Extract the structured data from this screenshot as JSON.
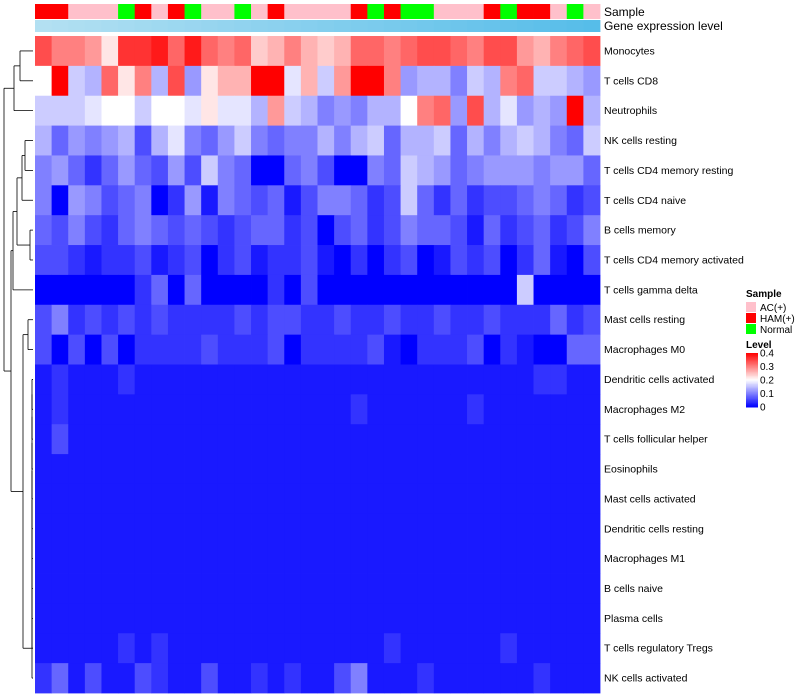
{
  "chart_data": {
    "type": "heatmap",
    "title": "",
    "annotation_labels": {
      "sample": "Sample",
      "gene": "Gene expression level"
    },
    "colors": {
      "low": "#0000ff",
      "mid": "#ffffff",
      "high": "#ff0000",
      "AC(+)": "#ffc0cb",
      "HAM(+)": "#ff0000",
      "Normal": "#00ff00",
      "gene_start": "#b3e0f2",
      "gene_end": "#56bde9",
      "dendrogram": "#000000"
    },
    "rows": [
      "Monocytes",
      "T cells CD8",
      "Neutrophils",
      "NK cells resting",
      "T cells CD4 memory resting",
      "T cells CD4 naive",
      "B cells memory",
      "T cells CD4 memory activated",
      "T cells gamma delta",
      "Mast cells resting",
      "Macrophages M0",
      "Dendritic cells activated",
      "Macrophages M2",
      "T cells follicular helper",
      "Eosinophils",
      "Mast cells activated",
      "Dendritic cells resting",
      "Macrophages M1",
      "B cells naive",
      "Plasma cells",
      "T cells regulatory  Tregs",
      "NK cells activated"
    ],
    "samples": [
      "HAM(+)",
      "HAM(+)",
      "AC(+)",
      "AC(+)",
      "AC(+)",
      "Normal",
      "HAM(+)",
      "AC(+)",
      "HAM(+)",
      "Normal",
      "AC(+)",
      "AC(+)",
      "Normal",
      "AC(+)",
      "HAM(+)",
      "AC(+)",
      "AC(+)",
      "AC(+)",
      "AC(+)",
      "HAM(+)",
      "Normal",
      "HAM(+)",
      "Normal",
      "Normal",
      "AC(+)",
      "AC(+)",
      "AC(+)",
      "HAM(+)",
      "Normal",
      "HAM(+)",
      "HAM(+)",
      "AC(+)",
      "Normal",
      "AC(+)"
    ],
    "values": [
      [
        0.34,
        0.3,
        0.3,
        0.28,
        0.22,
        0.36,
        0.36,
        0.38,
        0.32,
        0.38,
        0.32,
        0.3,
        0.32,
        0.24,
        0.26,
        0.3,
        0.26,
        0.24,
        0.26,
        0.32,
        0.32,
        0.3,
        0.32,
        0.34,
        0.34,
        0.32,
        0.3,
        0.34,
        0.34,
        0.28,
        0.26,
        0.3,
        0.32,
        0.34
      ],
      [
        0.2,
        0.4,
        0.16,
        0.14,
        0.32,
        0.22,
        0.3,
        0.14,
        0.34,
        0.12,
        0.22,
        0.26,
        0.26,
        0.4,
        0.4,
        0.18,
        0.26,
        0.16,
        0.28,
        0.4,
        0.4,
        0.3,
        0.12,
        0.14,
        0.14,
        0.1,
        0.16,
        0.14,
        0.3,
        0.32,
        0.16,
        0.16,
        0.14,
        0.12
      ],
      [
        0.16,
        0.16,
        0.16,
        0.18,
        0.2,
        0.2,
        0.16,
        0.2,
        0.2,
        0.18,
        0.22,
        0.18,
        0.18,
        0.14,
        0.28,
        0.16,
        0.14,
        0.1,
        0.12,
        0.1,
        0.14,
        0.14,
        0.2,
        0.3,
        0.32,
        0.12,
        0.34,
        0.14,
        0.18,
        0.12,
        0.14,
        0.12,
        0.4,
        0.14
      ],
      [
        0.14,
        0.08,
        0.12,
        0.1,
        0.12,
        0.14,
        0.06,
        0.14,
        0.18,
        0.1,
        0.08,
        0.12,
        0.16,
        0.1,
        0.08,
        0.1,
        0.1,
        0.14,
        0.1,
        0.14,
        0.16,
        0.08,
        0.14,
        0.14,
        0.16,
        0.08,
        0.14,
        0.1,
        0.14,
        0.16,
        0.14,
        0.1,
        0.08,
        0.16
      ],
      [
        0.1,
        0.12,
        0.08,
        0.04,
        0.08,
        0.12,
        0.08,
        0.06,
        0.12,
        0.06,
        0.16,
        0.1,
        0.08,
        0.0,
        0.0,
        0.08,
        0.1,
        0.06,
        0.0,
        0.0,
        0.1,
        0.08,
        0.16,
        0.14,
        0.12,
        0.08,
        0.1,
        0.12,
        0.12,
        0.12,
        0.1,
        0.12,
        0.12,
        0.08
      ],
      [
        0.1,
        0.0,
        0.12,
        0.1,
        0.06,
        0.08,
        0.1,
        0.0,
        0.04,
        0.12,
        0.02,
        0.1,
        0.08,
        0.06,
        0.08,
        0.02,
        0.06,
        0.1,
        0.1,
        0.08,
        0.04,
        0.06,
        0.16,
        0.08,
        0.04,
        0.08,
        0.04,
        0.06,
        0.06,
        0.08,
        0.1,
        0.08,
        0.04,
        0.06
      ],
      [
        0.08,
        0.06,
        0.1,
        0.06,
        0.04,
        0.08,
        0.1,
        0.08,
        0.06,
        0.08,
        0.06,
        0.04,
        0.06,
        0.08,
        0.08,
        0.04,
        0.06,
        0.0,
        0.06,
        0.08,
        0.04,
        0.06,
        0.1,
        0.08,
        0.08,
        0.06,
        0.02,
        0.08,
        0.04,
        0.06,
        0.08,
        0.04,
        0.06,
        0.1
      ],
      [
        0.06,
        0.06,
        0.04,
        0.02,
        0.04,
        0.04,
        0.06,
        0.02,
        0.04,
        0.06,
        0.0,
        0.04,
        0.06,
        0.02,
        0.04,
        0.04,
        0.06,
        0.02,
        0.0,
        0.04,
        0.0,
        0.04,
        0.06,
        0.0,
        0.02,
        0.06,
        0.04,
        0.06,
        0.0,
        0.04,
        0.08,
        0.02,
        0.0,
        0.06
      ],
      [
        0.0,
        0.0,
        0.0,
        0.0,
        0.0,
        0.0,
        0.04,
        0.08,
        0.0,
        0.08,
        0.0,
        0.0,
        0.0,
        0.0,
        0.04,
        0.0,
        0.06,
        0.0,
        0.0,
        0.0,
        0.0,
        0.0,
        0.0,
        0.0,
        0.0,
        0.0,
        0.0,
        0.0,
        0.0,
        0.16,
        0.0,
        0.0,
        0.0,
        0.0
      ],
      [
        0.06,
        0.1,
        0.04,
        0.06,
        0.04,
        0.06,
        0.04,
        0.06,
        0.04,
        0.04,
        0.04,
        0.04,
        0.06,
        0.04,
        0.06,
        0.06,
        0.04,
        0.04,
        0.06,
        0.04,
        0.04,
        0.06,
        0.04,
        0.04,
        0.06,
        0.04,
        0.04,
        0.06,
        0.04,
        0.04,
        0.04,
        0.08,
        0.04,
        0.06
      ],
      [
        0.06,
        0.0,
        0.06,
        0.0,
        0.06,
        0.0,
        0.04,
        0.04,
        0.04,
        0.04,
        0.06,
        0.04,
        0.04,
        0.04,
        0.06,
        0.0,
        0.04,
        0.04,
        0.04,
        0.04,
        0.06,
        0.02,
        0.0,
        0.04,
        0.04,
        0.04,
        0.06,
        0.0,
        0.04,
        0.02,
        0.0,
        0.0,
        0.08,
        0.08
      ],
      [
        0.02,
        0.04,
        0.02,
        0.02,
        0.02,
        0.04,
        0.02,
        0.02,
        0.02,
        0.02,
        0.02,
        0.02,
        0.02,
        0.02,
        0.02,
        0.02,
        0.02,
        0.02,
        0.02,
        0.02,
        0.02,
        0.02,
        0.02,
        0.02,
        0.02,
        0.02,
        0.02,
        0.02,
        0.02,
        0.02,
        0.04,
        0.04,
        0.02,
        0.02
      ],
      [
        0.02,
        0.04,
        0.02,
        0.02,
        0.02,
        0.02,
        0.02,
        0.02,
        0.02,
        0.02,
        0.02,
        0.02,
        0.02,
        0.02,
        0.02,
        0.02,
        0.02,
        0.02,
        0.02,
        0.04,
        0.02,
        0.02,
        0.02,
        0.02,
        0.02,
        0.02,
        0.04,
        0.02,
        0.02,
        0.02,
        0.02,
        0.02,
        0.02,
        0.02
      ],
      [
        0.02,
        0.06,
        0.02,
        0.02,
        0.02,
        0.02,
        0.02,
        0.02,
        0.02,
        0.02,
        0.02,
        0.02,
        0.02,
        0.02,
        0.02,
        0.02,
        0.02,
        0.02,
        0.02,
        0.02,
        0.02,
        0.02,
        0.02,
        0.02,
        0.02,
        0.02,
        0.02,
        0.02,
        0.02,
        0.02,
        0.02,
        0.02,
        0.02,
        0.02
      ],
      [
        0.02,
        0.02,
        0.02,
        0.02,
        0.02,
        0.02,
        0.02,
        0.02,
        0.02,
        0.02,
        0.02,
        0.02,
        0.02,
        0.02,
        0.02,
        0.02,
        0.02,
        0.02,
        0.02,
        0.02,
        0.02,
        0.02,
        0.02,
        0.02,
        0.02,
        0.02,
        0.02,
        0.02,
        0.02,
        0.02,
        0.02,
        0.02,
        0.02,
        0.02
      ],
      [
        0.02,
        0.02,
        0.02,
        0.02,
        0.02,
        0.02,
        0.02,
        0.02,
        0.02,
        0.02,
        0.02,
        0.02,
        0.02,
        0.02,
        0.02,
        0.02,
        0.02,
        0.02,
        0.02,
        0.02,
        0.02,
        0.02,
        0.02,
        0.02,
        0.02,
        0.02,
        0.02,
        0.02,
        0.02,
        0.02,
        0.02,
        0.02,
        0.02,
        0.02
      ],
      [
        0.02,
        0.02,
        0.02,
        0.02,
        0.02,
        0.02,
        0.02,
        0.02,
        0.02,
        0.02,
        0.02,
        0.02,
        0.02,
        0.02,
        0.02,
        0.02,
        0.02,
        0.02,
        0.02,
        0.02,
        0.02,
        0.02,
        0.02,
        0.02,
        0.02,
        0.02,
        0.02,
        0.02,
        0.02,
        0.02,
        0.02,
        0.02,
        0.02,
        0.02
      ],
      [
        0.02,
        0.02,
        0.02,
        0.02,
        0.02,
        0.02,
        0.02,
        0.02,
        0.02,
        0.02,
        0.02,
        0.02,
        0.02,
        0.02,
        0.02,
        0.02,
        0.02,
        0.02,
        0.02,
        0.02,
        0.02,
        0.02,
        0.02,
        0.02,
        0.02,
        0.02,
        0.02,
        0.02,
        0.02,
        0.02,
        0.02,
        0.02,
        0.02,
        0.02
      ],
      [
        0.02,
        0.02,
        0.02,
        0.02,
        0.02,
        0.02,
        0.02,
        0.02,
        0.02,
        0.02,
        0.02,
        0.02,
        0.02,
        0.02,
        0.02,
        0.02,
        0.02,
        0.02,
        0.02,
        0.02,
        0.02,
        0.02,
        0.02,
        0.02,
        0.02,
        0.02,
        0.02,
        0.02,
        0.02,
        0.02,
        0.02,
        0.02,
        0.02,
        0.02
      ],
      [
        0.02,
        0.02,
        0.02,
        0.02,
        0.02,
        0.02,
        0.02,
        0.02,
        0.02,
        0.02,
        0.02,
        0.02,
        0.02,
        0.02,
        0.02,
        0.02,
        0.02,
        0.02,
        0.02,
        0.02,
        0.02,
        0.02,
        0.02,
        0.02,
        0.02,
        0.02,
        0.02,
        0.02,
        0.02,
        0.02,
        0.02,
        0.02,
        0.02,
        0.02
      ],
      [
        0.02,
        0.02,
        0.02,
        0.02,
        0.02,
        0.04,
        0.02,
        0.04,
        0.02,
        0.02,
        0.02,
        0.02,
        0.02,
        0.02,
        0.02,
        0.02,
        0.02,
        0.02,
        0.02,
        0.02,
        0.02,
        0.04,
        0.02,
        0.02,
        0.02,
        0.02,
        0.02,
        0.02,
        0.04,
        0.02,
        0.02,
        0.02,
        0.02,
        0.02
      ],
      [
        0.04,
        0.08,
        0.02,
        0.06,
        0.02,
        0.02,
        0.06,
        0.04,
        0.02,
        0.02,
        0.06,
        0.02,
        0.02,
        0.04,
        0.02,
        0.04,
        0.02,
        0.02,
        0.06,
        0.1,
        0.02,
        0.02,
        0.02,
        0.04,
        0.02,
        0.02,
        0.02,
        0.02,
        0.02,
        0.02,
        0.04,
        0.02,
        0.02,
        0.02
      ]
    ],
    "legend": {
      "sample_title": "Sample",
      "sample_items": [
        "AC(+)",
        "HAM(+)",
        "Normal"
      ],
      "level_title": "Level",
      "level_ticks": [
        0.4,
        0.3,
        0.2,
        0.1,
        0
      ],
      "level_range": [
        0,
        0.4
      ]
    }
  }
}
